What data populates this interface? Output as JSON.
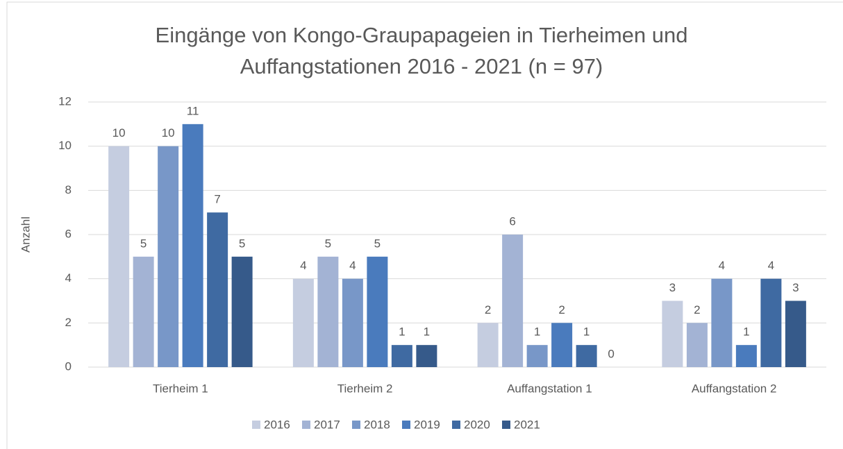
{
  "chart_data": {
    "type": "bar",
    "title": "Eingänge von Kongo-Graupapageien in Tierheimen und Auffangstationen 2016 - 2021 (n = 97)",
    "y_label": "Anzahl",
    "categories": [
      "Tierheim 1",
      "Tierheim 2",
      "Auffangstation 1",
      "Auffangstation 2"
    ],
    "series": [
      {
        "name": "2016",
        "color": "#c5cde0",
        "values": [
          10,
          4,
          2,
          3
        ]
      },
      {
        "name": "2017",
        "color": "#a3b3d4",
        "values": [
          5,
          5,
          6,
          2
        ]
      },
      {
        "name": "2018",
        "color": "#7897c8",
        "values": [
          10,
          4,
          1,
          4
        ]
      },
      {
        "name": "2019",
        "color": "#4a7bbd",
        "values": [
          11,
          5,
          2,
          1
        ]
      },
      {
        "name": "2020",
        "color": "#3f6aa2",
        "values": [
          7,
          1,
          1,
          4
        ]
      },
      {
        "name": "2021",
        "color": "#365a8a",
        "values": [
          5,
          1,
          0,
          3
        ]
      }
    ],
    "ylim": [
      0,
      12
    ],
    "yticks": [
      0,
      2,
      4,
      6,
      8,
      10,
      12
    ],
    "grid": true,
    "legend": "bottom"
  }
}
